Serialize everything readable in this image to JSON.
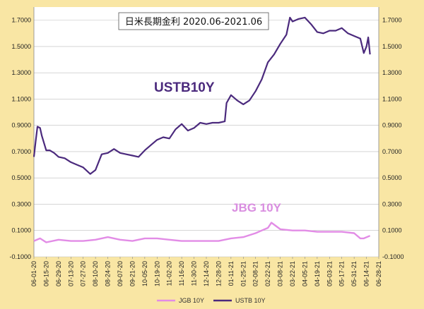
{
  "colors": {
    "background": "#f9e6a4",
    "plot_bg": "#ffffff",
    "gridline": "#bdbdbd",
    "ustb": "#4b2a7d",
    "jgb": "#e28ce6"
  },
  "chart_data": {
    "type": "line",
    "title": "日米長期金利 2020.06-2021.06",
    "xlabel": "",
    "ylabel": "",
    "ylim": [
      -0.1,
      1.8
    ],
    "yticks": [
      -0.1,
      0.1,
      0.3,
      0.5,
      0.7,
      0.9,
      1.1,
      1.3,
      1.5,
      1.7
    ],
    "ytick_labels": [
      "-0.1000",
      "0.1000",
      "0.3000",
      "0.5000",
      "0.7000",
      "0.9000",
      "1.1000",
      "1.3000",
      "1.5000",
      "1.7000"
    ],
    "xlim": [
      "2020-06-01",
      "2021-06-28"
    ],
    "x_tick_labels": [
      "06-01-20",
      "06-15-20",
      "06-29-20",
      "07-13-20",
      "07-27-20",
      "08-10-20",
      "08-24-20",
      "09-07-20",
      "09-21-20",
      "10-05-20",
      "10-19-20",
      "11-02-20",
      "11-16-20",
      "11-30-20",
      "12-14-20",
      "12-28-20",
      "01-11-21",
      "01-25-21",
      "02-08-21",
      "02-22-21",
      "03-08-21",
      "03-22-21",
      "04-05-21",
      "04-19-21",
      "05-03-21",
      "05-17-21",
      "05-31-21",
      "06-14-21",
      "06-28-21"
    ],
    "legend_position": "bottom",
    "annotations": [
      {
        "text": "USTB10Y",
        "series": "USTB 10Y"
      },
      {
        "text": "JBG 10Y",
        "series": "JGB 10Y"
      }
    ],
    "series": [
      {
        "name": "USTB 10Y",
        "x": [
          "2020-06-01",
          "2020-06-03",
          "2020-06-05",
          "2020-06-08",
          "2020-06-10",
          "2020-06-15",
          "2020-06-19",
          "2020-06-24",
          "2020-06-29",
          "2020-07-06",
          "2020-07-13",
          "2020-07-20",
          "2020-07-27",
          "2020-08-04",
          "2020-08-10",
          "2020-08-17",
          "2020-08-24",
          "2020-08-31",
          "2020-09-07",
          "2020-09-14",
          "2020-09-21",
          "2020-09-28",
          "2020-10-05",
          "2020-10-12",
          "2020-10-19",
          "2020-10-26",
          "2020-11-02",
          "2020-11-09",
          "2020-11-16",
          "2020-11-23",
          "2020-11-30",
          "2020-12-07",
          "2020-12-14",
          "2020-12-21",
          "2020-12-28",
          "2021-01-04",
          "2021-01-06",
          "2021-01-11",
          "2021-01-18",
          "2021-01-25",
          "2021-02-01",
          "2021-02-08",
          "2021-02-15",
          "2021-02-22",
          "2021-03-01",
          "2021-03-08",
          "2021-03-15",
          "2021-03-19",
          "2021-03-22",
          "2021-03-29",
          "2021-04-05",
          "2021-04-12",
          "2021-04-19",
          "2021-04-26",
          "2021-05-03",
          "2021-05-10",
          "2021-05-17",
          "2021-05-24",
          "2021-05-31",
          "2021-06-07",
          "2021-06-11",
          "2021-06-14",
          "2021-06-16",
          "2021-06-18"
        ],
        "y": [
          0.66,
          0.78,
          0.89,
          0.88,
          0.82,
          0.71,
          0.71,
          0.69,
          0.66,
          0.65,
          0.62,
          0.6,
          0.58,
          0.53,
          0.56,
          0.68,
          0.69,
          0.72,
          0.69,
          0.68,
          0.67,
          0.66,
          0.71,
          0.75,
          0.79,
          0.81,
          0.8,
          0.87,
          0.91,
          0.86,
          0.88,
          0.92,
          0.91,
          0.92,
          0.92,
          0.93,
          1.07,
          1.13,
          1.09,
          1.06,
          1.09,
          1.16,
          1.25,
          1.38,
          1.44,
          1.52,
          1.59,
          1.72,
          1.69,
          1.71,
          1.72,
          1.67,
          1.61,
          1.6,
          1.62,
          1.62,
          1.64,
          1.6,
          1.58,
          1.56,
          1.45,
          1.5,
          1.57,
          1.44
        ]
      },
      {
        "name": "JGB 10Y",
        "x": [
          "2020-06-01",
          "2020-06-08",
          "2020-06-15",
          "2020-06-29",
          "2020-07-13",
          "2020-07-27",
          "2020-08-10",
          "2020-08-24",
          "2020-09-07",
          "2020-09-21",
          "2020-10-05",
          "2020-10-19",
          "2020-11-02",
          "2020-11-16",
          "2020-11-30",
          "2020-12-14",
          "2020-12-28",
          "2021-01-11",
          "2021-01-25",
          "2021-02-08",
          "2021-02-15",
          "2021-02-22",
          "2021-02-26",
          "2021-03-08",
          "2021-03-22",
          "2021-04-05",
          "2021-04-19",
          "2021-05-03",
          "2021-05-17",
          "2021-05-31",
          "2021-06-07",
          "2021-06-11",
          "2021-06-18"
        ],
        "y": [
          0.02,
          0.04,
          0.01,
          0.03,
          0.02,
          0.02,
          0.03,
          0.05,
          0.03,
          0.02,
          0.04,
          0.04,
          0.03,
          0.02,
          0.02,
          0.02,
          0.02,
          0.04,
          0.05,
          0.08,
          0.1,
          0.12,
          0.16,
          0.11,
          0.1,
          0.1,
          0.09,
          0.09,
          0.09,
          0.08,
          0.04,
          0.04,
          0.06
        ]
      }
    ]
  }
}
